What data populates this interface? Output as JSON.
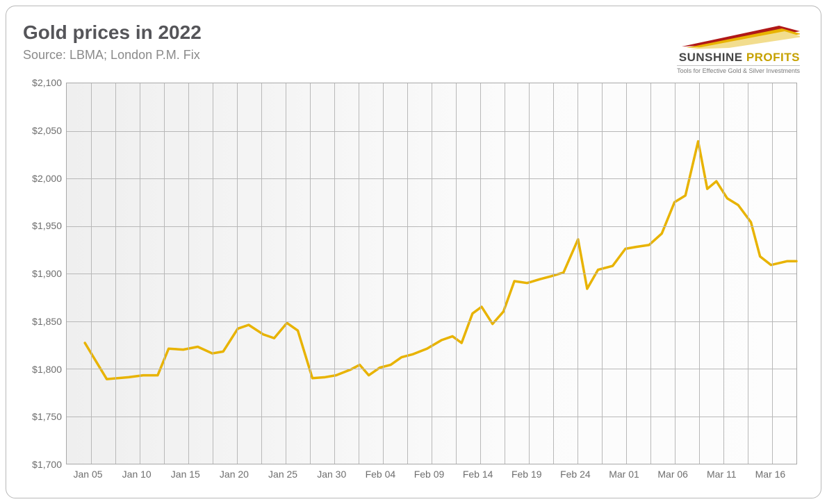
{
  "title": "Gold prices in 2022",
  "source": "Source: LBMA; London P.M. Fix",
  "logo": {
    "name_left": "SUNSHINE",
    "name_right": " PROFITS",
    "tagline": "Tools for Effective Gold & Silver Investments",
    "swoosh_colors": [
      "#b01818",
      "#e8b300",
      "#f2dd8e"
    ]
  },
  "chart": {
    "type": "line",
    "line_color": "#e8b300",
    "line_width": 3.5,
    "background_gradient": [
      "#efefef",
      "#fdfdfd"
    ],
    "grid_color": "#b8b8b8",
    "axis_label_color": "#6e6e6e",
    "axis_label_fontsize": 14,
    "ylim": [
      1700,
      2100
    ],
    "ytick_step": 50,
    "ytick_prefix": "$",
    "ytick_format": "comma",
    "yticks": [
      1700,
      1750,
      1800,
      1850,
      1900,
      1950,
      2000,
      2050,
      2100
    ],
    "x_major_labels": [
      "Jan 05",
      "Jan 10",
      "Jan 15",
      "Jan 20",
      "Jan 25",
      "Jan 30",
      "Feb 04",
      "Feb 09",
      "Feb 14",
      "Feb 19",
      "Feb 24",
      "Mar 01",
      "Mar 06",
      "Mar 11",
      "Mar 16"
    ],
    "x_grid_count": 15,
    "series": [
      {
        "x": 0.0,
        "y": 1827
      },
      {
        "x": 0.6,
        "y": 1789
      },
      {
        "x": 1.2,
        "y": 1791
      },
      {
        "x": 1.6,
        "y": 1793
      },
      {
        "x": 2.0,
        "y": 1793
      },
      {
        "x": 2.3,
        "y": 1821
      },
      {
        "x": 2.7,
        "y": 1820
      },
      {
        "x": 3.1,
        "y": 1823
      },
      {
        "x": 3.5,
        "y": 1816
      },
      {
        "x": 3.8,
        "y": 1818
      },
      {
        "x": 4.2,
        "y": 1842
      },
      {
        "x": 4.5,
        "y": 1846
      },
      {
        "x": 4.9,
        "y": 1836
      },
      {
        "x": 5.2,
        "y": 1832
      },
      {
        "x": 5.55,
        "y": 1848
      },
      {
        "x": 5.85,
        "y": 1840
      },
      {
        "x": 6.25,
        "y": 1790
      },
      {
        "x": 6.6,
        "y": 1791
      },
      {
        "x": 6.9,
        "y": 1793
      },
      {
        "x": 7.3,
        "y": 1799
      },
      {
        "x": 7.55,
        "y": 1804
      },
      {
        "x": 7.8,
        "y": 1793
      },
      {
        "x": 8.1,
        "y": 1801
      },
      {
        "x": 8.4,
        "y": 1804
      },
      {
        "x": 8.7,
        "y": 1812
      },
      {
        "x": 9.0,
        "y": 1815
      },
      {
        "x": 9.4,
        "y": 1821
      },
      {
        "x": 9.8,
        "y": 1830
      },
      {
        "x": 10.1,
        "y": 1834
      },
      {
        "x": 10.35,
        "y": 1827
      },
      {
        "x": 10.65,
        "y": 1858
      },
      {
        "x": 10.9,
        "y": 1865
      },
      {
        "x": 11.2,
        "y": 1847
      },
      {
        "x": 11.5,
        "y": 1860
      },
      {
        "x": 11.8,
        "y": 1892
      },
      {
        "x": 12.15,
        "y": 1890
      },
      {
        "x": 12.5,
        "y": 1894
      },
      {
        "x": 12.8,
        "y": 1897
      },
      {
        "x": 13.15,
        "y": 1901
      },
      {
        "x": 13.55,
        "y": 1936
      },
      {
        "x": 13.8,
        "y": 1884
      },
      {
        "x": 14.1,
        "y": 1904
      },
      {
        "x": 14.5,
        "y": 1908
      },
      {
        "x": 14.85,
        "y": 1926
      },
      {
        "x": 15.15,
        "y": 1928
      },
      {
        "x": 15.5,
        "y": 1930
      },
      {
        "x": 15.85,
        "y": 1942
      },
      {
        "x": 16.2,
        "y": 1975
      },
      {
        "x": 16.5,
        "y": 1982
      },
      {
        "x": 16.85,
        "y": 2039
      },
      {
        "x": 17.1,
        "y": 1989
      },
      {
        "x": 17.35,
        "y": 1997
      },
      {
        "x": 17.65,
        "y": 1979
      },
      {
        "x": 17.95,
        "y": 1972
      },
      {
        "x": 18.3,
        "y": 1954
      },
      {
        "x": 18.55,
        "y": 1918
      },
      {
        "x": 18.85,
        "y": 1909
      },
      {
        "x": 19.3,
        "y": 1913
      },
      {
        "x": 19.55,
        "y": 1913
      }
    ],
    "x_domain": [
      -0.5,
      19.55
    ]
  }
}
